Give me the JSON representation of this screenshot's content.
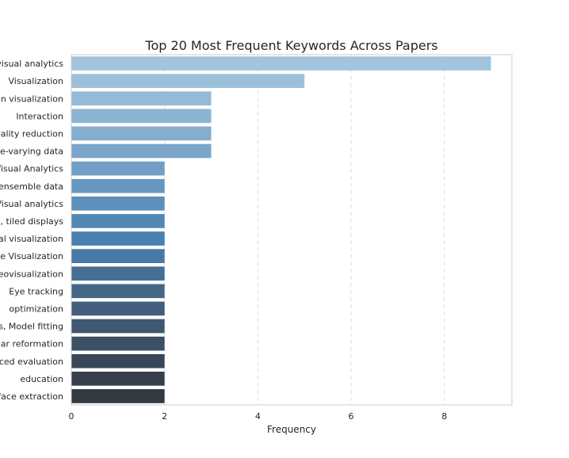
{
  "chart_data": {
    "type": "bar",
    "orientation": "horizontal",
    "title": "Top 20 Most Frequent Keywords Across Papers",
    "xlabel": "Frequency",
    "ylabel": "",
    "xlim": [
      0,
      9.45
    ],
    "xticks": [
      0,
      2,
      4,
      6,
      8
    ],
    "grid": "vertical dashed",
    "legend": "none",
    "categories": [
      "visual analytics",
      "Visualization",
      "en visualization",
      "Interaction",
      "ality reduction",
      "e-varying data",
      "Visual Analytics",
      "ensemble data",
      "Visual analytics",
      ", tiled displays",
      "al visualization",
      "e Visualization",
      "eovisualization",
      "Eye tracking",
      "optimization",
      "s, Model fitting",
      "ar reformation",
      "ced evaluation",
      "education",
      "face extraction"
    ],
    "values": [
      9,
      5,
      3,
      3,
      3,
      3,
      2,
      2,
      2,
      2,
      2,
      2,
      2,
      2,
      2,
      2,
      2,
      2,
      2,
      2
    ],
    "colors": [
      "#a3c4dc",
      "#9cc0da",
      "#94bad7",
      "#8cb4d3",
      "#84aecf",
      "#7ba6ca",
      "#729ec5",
      "#6797c0",
      "#5d8fbb",
      "#5287b5",
      "#4880b0",
      "#4679a5",
      "#466f96",
      "#446788",
      "#425e7c",
      "#3f5770",
      "#3c4f63",
      "#394758",
      "#36404c",
      "#333940"
    ]
  }
}
